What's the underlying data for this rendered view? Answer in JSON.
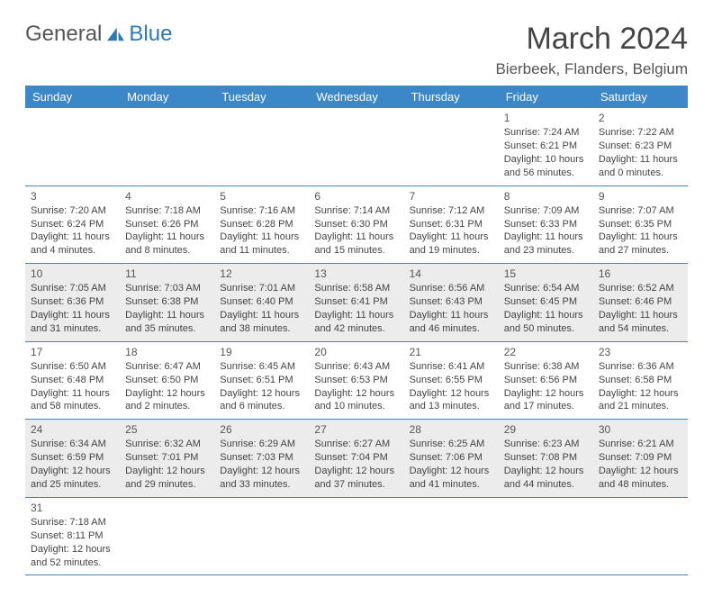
{
  "logo": {
    "part1": "General",
    "part2": "Blue"
  },
  "heading": {
    "month": "March 2024",
    "location": "Bierbeek, Flanders, Belgium"
  },
  "colors": {
    "header_bg": "#3b87c8",
    "header_fg": "#ffffff",
    "row_alt": "#ececec",
    "rule": "#3b87c8"
  },
  "font": {
    "family": "Arial",
    "title_size": 34,
    "cell_size": 11
  },
  "daysOfWeek": [
    "Sunday",
    "Monday",
    "Tuesday",
    "Wednesday",
    "Thursday",
    "Friday",
    "Saturday"
  ],
  "startWeekday": 5,
  "daysInMonth": 31,
  "cells": [
    {
      "n": 1,
      "sr": "7:24 AM",
      "ss": "6:21 PM",
      "dh": 10,
      "dm": 56
    },
    {
      "n": 2,
      "sr": "7:22 AM",
      "ss": "6:23 PM",
      "dh": 11,
      "dm": 0
    },
    {
      "n": 3,
      "sr": "7:20 AM",
      "ss": "6:24 PM",
      "dh": 11,
      "dm": 4
    },
    {
      "n": 4,
      "sr": "7:18 AM",
      "ss": "6:26 PM",
      "dh": 11,
      "dm": 8
    },
    {
      "n": 5,
      "sr": "7:16 AM",
      "ss": "6:28 PM",
      "dh": 11,
      "dm": 11
    },
    {
      "n": 6,
      "sr": "7:14 AM",
      "ss": "6:30 PM",
      "dh": 11,
      "dm": 15
    },
    {
      "n": 7,
      "sr": "7:12 AM",
      "ss": "6:31 PM",
      "dh": 11,
      "dm": 19
    },
    {
      "n": 8,
      "sr": "7:09 AM",
      "ss": "6:33 PM",
      "dh": 11,
      "dm": 23
    },
    {
      "n": 9,
      "sr": "7:07 AM",
      "ss": "6:35 PM",
      "dh": 11,
      "dm": 27
    },
    {
      "n": 10,
      "sr": "7:05 AM",
      "ss": "6:36 PM",
      "dh": 11,
      "dm": 31
    },
    {
      "n": 11,
      "sr": "7:03 AM",
      "ss": "6:38 PM",
      "dh": 11,
      "dm": 35
    },
    {
      "n": 12,
      "sr": "7:01 AM",
      "ss": "6:40 PM",
      "dh": 11,
      "dm": 38
    },
    {
      "n": 13,
      "sr": "6:58 AM",
      "ss": "6:41 PM",
      "dh": 11,
      "dm": 42
    },
    {
      "n": 14,
      "sr": "6:56 AM",
      "ss": "6:43 PM",
      "dh": 11,
      "dm": 46
    },
    {
      "n": 15,
      "sr": "6:54 AM",
      "ss": "6:45 PM",
      "dh": 11,
      "dm": 50
    },
    {
      "n": 16,
      "sr": "6:52 AM",
      "ss": "6:46 PM",
      "dh": 11,
      "dm": 54
    },
    {
      "n": 17,
      "sr": "6:50 AM",
      "ss": "6:48 PM",
      "dh": 11,
      "dm": 58
    },
    {
      "n": 18,
      "sr": "6:47 AM",
      "ss": "6:50 PM",
      "dh": 12,
      "dm": 2
    },
    {
      "n": 19,
      "sr": "6:45 AM",
      "ss": "6:51 PM",
      "dh": 12,
      "dm": 6
    },
    {
      "n": 20,
      "sr": "6:43 AM",
      "ss": "6:53 PM",
      "dh": 12,
      "dm": 10
    },
    {
      "n": 21,
      "sr": "6:41 AM",
      "ss": "6:55 PM",
      "dh": 12,
      "dm": 13
    },
    {
      "n": 22,
      "sr": "6:38 AM",
      "ss": "6:56 PM",
      "dh": 12,
      "dm": 17
    },
    {
      "n": 23,
      "sr": "6:36 AM",
      "ss": "6:58 PM",
      "dh": 12,
      "dm": 21
    },
    {
      "n": 24,
      "sr": "6:34 AM",
      "ss": "6:59 PM",
      "dh": 12,
      "dm": 25
    },
    {
      "n": 25,
      "sr": "6:32 AM",
      "ss": "7:01 PM",
      "dh": 12,
      "dm": 29
    },
    {
      "n": 26,
      "sr": "6:29 AM",
      "ss": "7:03 PM",
      "dh": 12,
      "dm": 33
    },
    {
      "n": 27,
      "sr": "6:27 AM",
      "ss": "7:04 PM",
      "dh": 12,
      "dm": 37
    },
    {
      "n": 28,
      "sr": "6:25 AM",
      "ss": "7:06 PM",
      "dh": 12,
      "dm": 41
    },
    {
      "n": 29,
      "sr": "6:23 AM",
      "ss": "7:08 PM",
      "dh": 12,
      "dm": 44
    },
    {
      "n": 30,
      "sr": "6:21 AM",
      "ss": "7:09 PM",
      "dh": 12,
      "dm": 48
    },
    {
      "n": 31,
      "sr": "7:18 AM",
      "ss": "8:11 PM",
      "dh": 12,
      "dm": 52
    }
  ],
  "labels": {
    "sunrise": "Sunrise:",
    "sunset": "Sunset:",
    "daylight": "Daylight:",
    "hours": "hours",
    "and": "and",
    "minutes": "minutes."
  }
}
